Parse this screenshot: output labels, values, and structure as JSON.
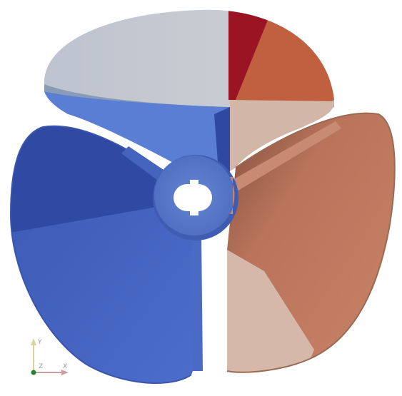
{
  "viewport": {
    "background": "#ffffff"
  },
  "propeller": {
    "blade_count": 3,
    "colors": {
      "dark_blue": "#2f4aa3",
      "mid_blue": "#4a6cc8",
      "light_blue": "#5f82d6",
      "grey": "#c3c8d0",
      "dark_red": "#9b1424",
      "orange": "#c0603f",
      "salmon": "#c88468",
      "tan": "#d4b4a4",
      "hub": "#5778c8",
      "hole": "#ffffff"
    }
  },
  "orientation_axes": {
    "x_label": "X",
    "y_label": "Y",
    "z_label": "Z",
    "x_color": "#c9a0a0",
    "y_color": "#d8d49a",
    "origin_color": "#2e7d32"
  }
}
